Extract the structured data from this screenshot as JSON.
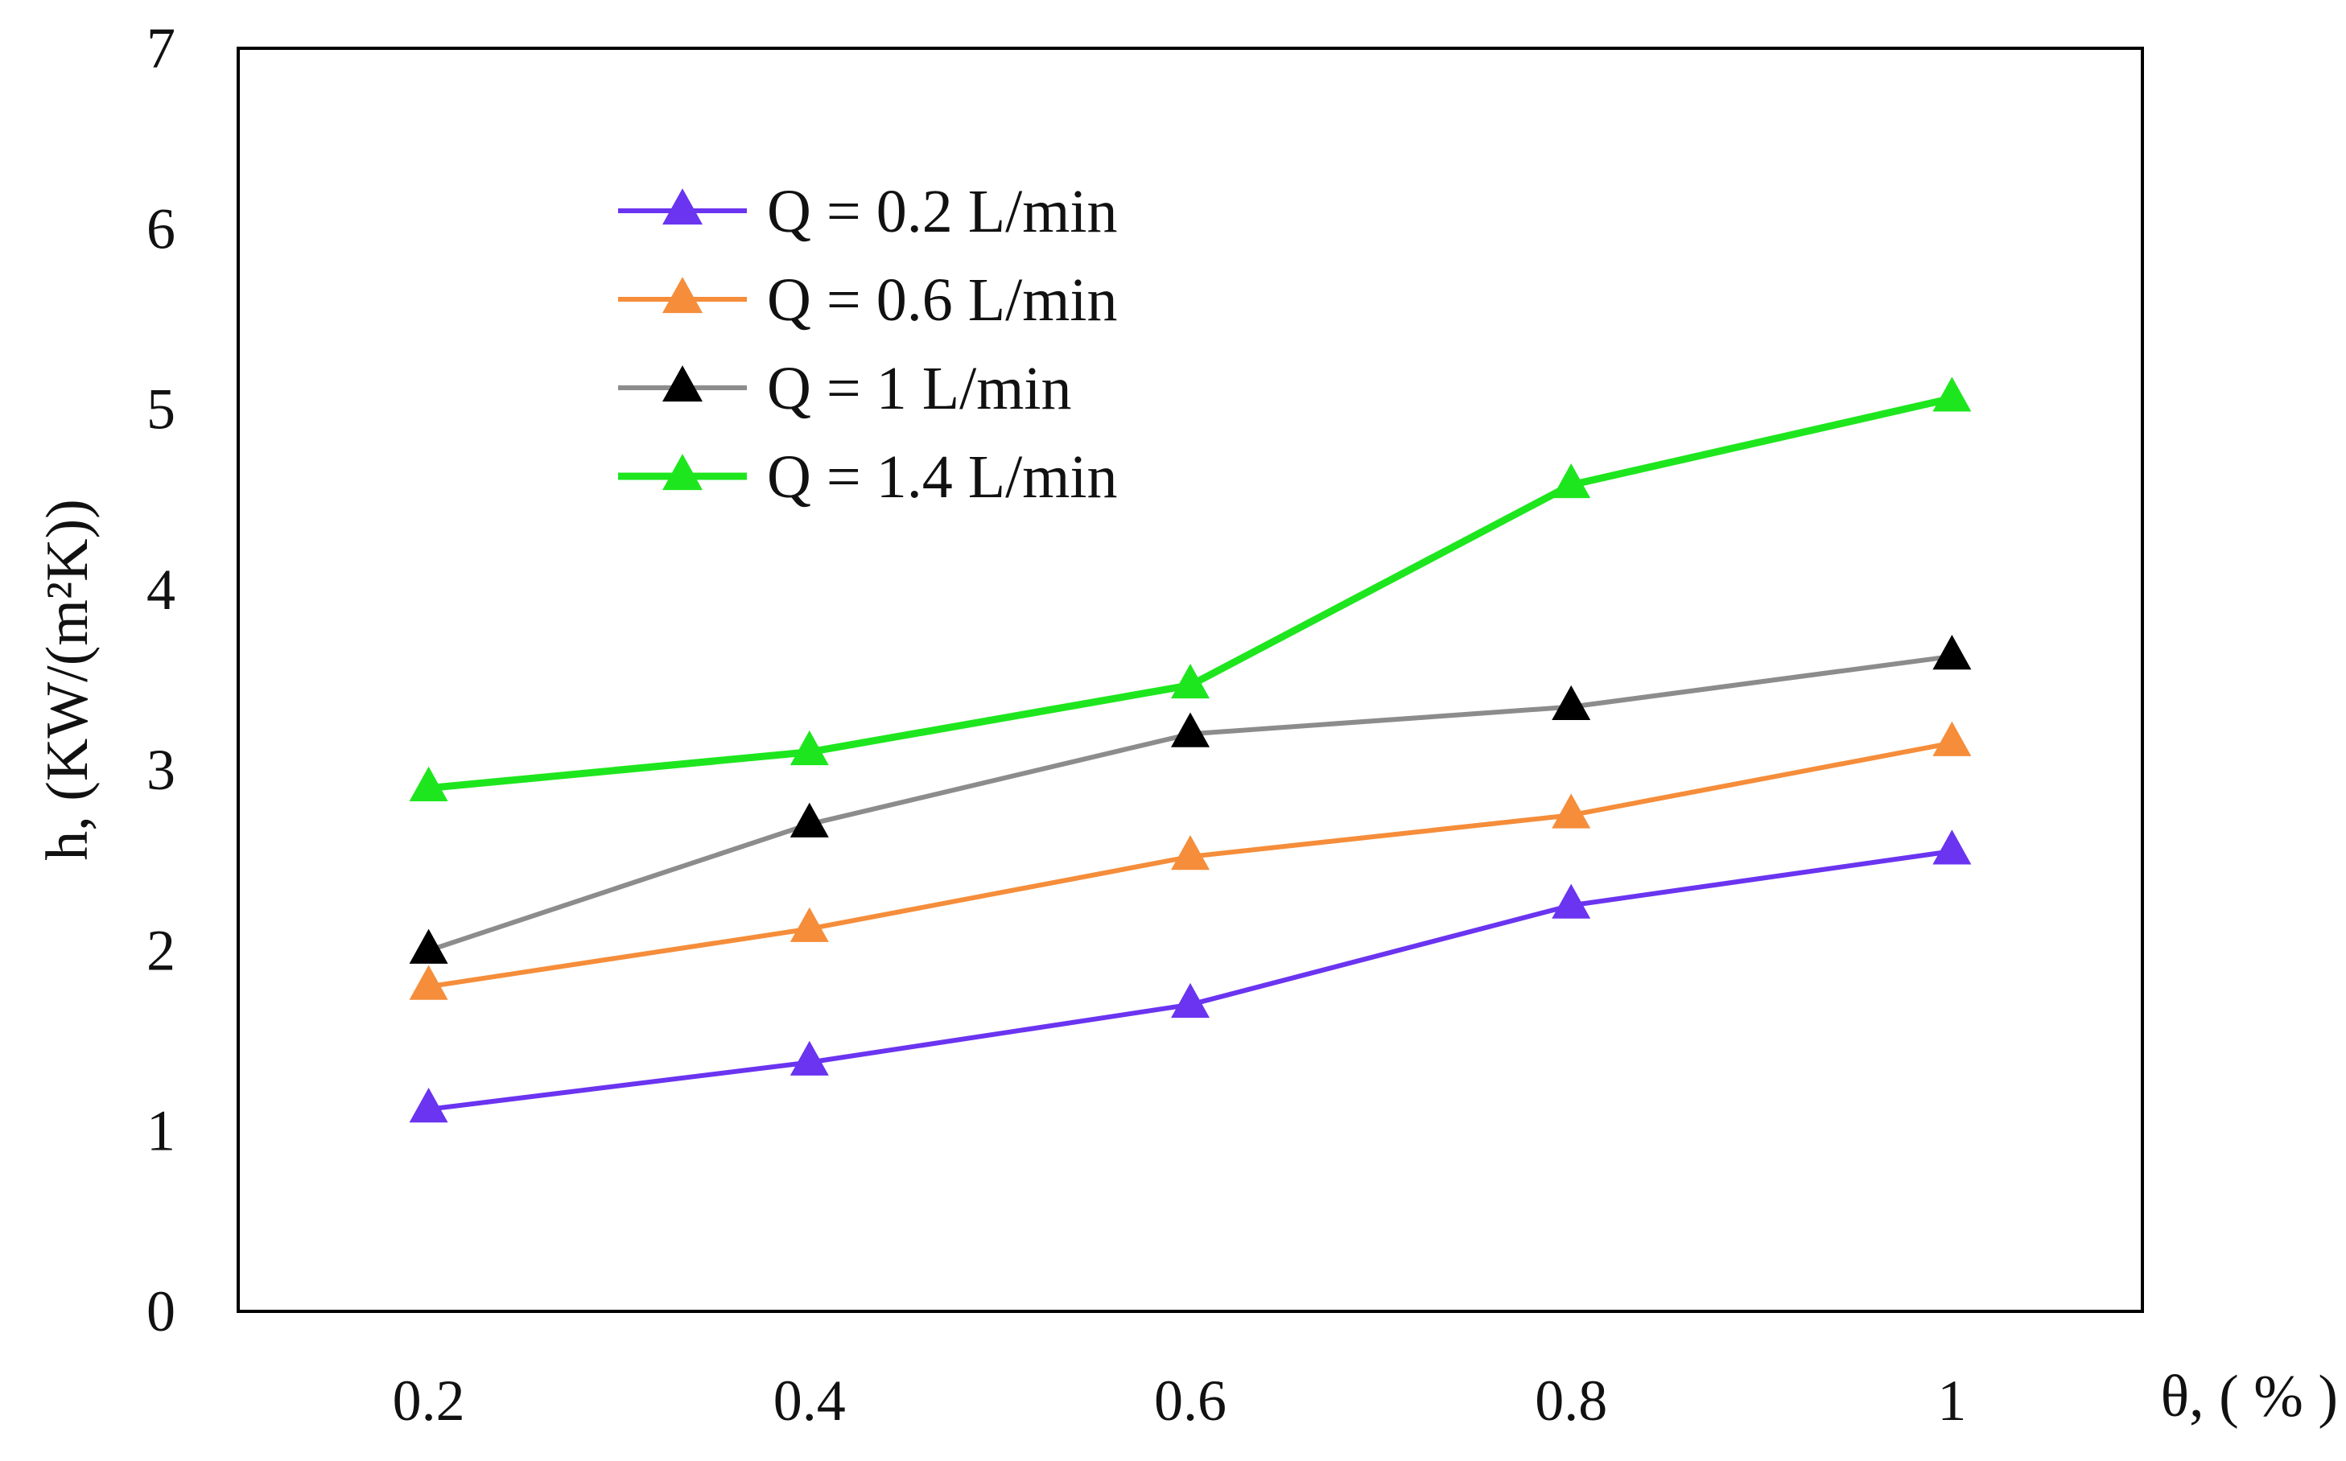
{
  "chart_data": {
    "type": "line",
    "title": "",
    "xlabel": "θ, ( % )",
    "ylabel": "h,  (KW/(m²K))",
    "x": [
      0.2,
      0.4,
      0.6,
      0.8,
      1
    ],
    "x_tick_labels": [
      "0.2",
      "0.4",
      "0.6",
      "0.8",
      "1"
    ],
    "xlim": [
      0.1,
      1.1
    ],
    "ylim": [
      0,
      7
    ],
    "y_ticks": [
      0,
      1,
      2,
      3,
      4,
      5,
      6,
      7
    ],
    "y_tick_labels": [
      "0",
      "1",
      "2",
      "3",
      "4",
      "5",
      "6",
      "7"
    ],
    "grid": false,
    "legend_position": "top-left",
    "marker": "triangle",
    "series": [
      {
        "name": "Q = 0.2 L/min",
        "line_color": "#6a34f0",
        "marker_color": "#6a34f0",
        "values": [
          1.12,
          1.38,
          1.7,
          2.25,
          2.55
        ]
      },
      {
        "name": "Q = 0.6 L/min",
        "line_color": "#f58d3a",
        "marker_color": "#f58d3a",
        "values": [
          1.8,
          2.12,
          2.52,
          2.75,
          3.15
        ]
      },
      {
        "name": "Q = 1 L/min",
        "line_color": "#8c8c8c",
        "marker_color": "#000000",
        "values": [
          2.0,
          2.7,
          3.2,
          3.35,
          3.63
        ]
      },
      {
        "name": "Q = 1.4 L/min",
        "line_color": "#1ee61e",
        "marker_color": "#1ee61e",
        "values": [
          2.9,
          3.1,
          3.47,
          4.58,
          5.06
        ]
      }
    ]
  }
}
